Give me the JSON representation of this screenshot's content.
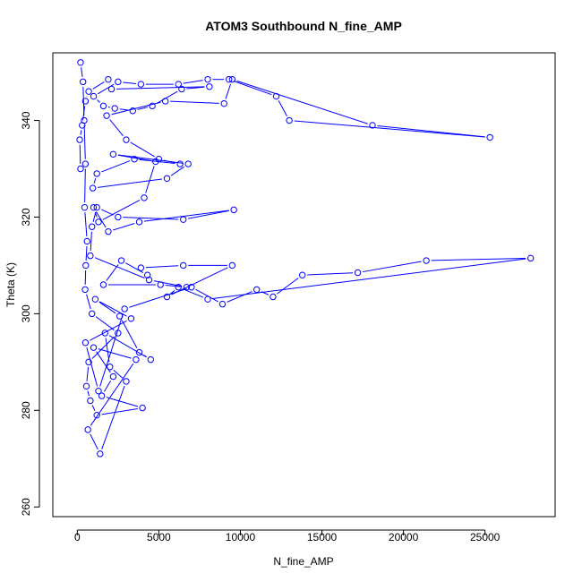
{
  "chart_data": {
    "type": "scatter",
    "mode": "lines+markers",
    "title": "ATOM3 Southbound N_fine_AMP",
    "xlabel": "N_fine_AMP",
    "ylabel": "Theta (K)",
    "xlim": [
      -1500,
      29300
    ],
    "ylim": [
      258,
      354
    ],
    "xticks": [
      0,
      5000,
      10000,
      15000,
      20000,
      25000
    ],
    "xtick_labels": [
      "0",
      "5000",
      "10000",
      "15000",
      "20000",
      "25000"
    ],
    "yticks": [
      260,
      280,
      300,
      320,
      340
    ],
    "ytick_labels": [
      "260",
      "280",
      "300",
      "320",
      "340"
    ],
    "grid": false,
    "color": "#0000ff",
    "marker": "open-circle",
    "series": [
      {
        "x": [
          200,
          350,
          420,
          500,
          450,
          600,
          520,
          480,
          900,
          2500,
          700,
          560,
          800,
          1200,
          4000,
          1500,
          2200,
          1000,
          3600,
          650,
          1400,
          3000,
          2000,
          1700,
          4500,
          3800,
          2600,
          1100,
          3300,
          500,
          1300,
          2900,
          7000,
          8900,
          11000,
          12000,
          13800,
          17200,
          21400,
          27800,
          8000,
          6200,
          5500,
          9500,
          6500,
          3900,
          4300,
          2700,
          1600,
          5100,
          6700,
          4400,
          800,
          900,
          1200,
          2500,
          6500,
          9600,
          3800,
          1900,
          1000,
          1300,
          4100,
          4800,
          2200,
          6800,
          5500,
          950,
          1200,
          3500,
          6300,
          5000,
          3000,
          1800,
          5400,
          9000,
          9500,
          18100,
          25300,
          13000,
          12200,
          9300,
          8000,
          6200,
          3900,
          2500,
          1000,
          1600,
          2300,
          3400,
          4600,
          6400,
          8100,
          2100,
          1900,
          700,
          500,
          300,
          150,
          200
        ],
        "y": [
          352,
          348,
          340,
          331,
          322,
          315,
          310,
          305,
          300,
          296,
          290,
          285,
          282,
          279,
          280.5,
          283,
          287,
          293,
          290.5,
          276,
          271,
          286,
          289,
          296,
          290.5,
          292,
          299.5,
          303,
          299,
          294,
          284,
          301,
          305.5,
          302,
          305,
          303.5,
          308,
          308.5,
          311,
          311.5,
          303,
          305.5,
          303.5,
          310,
          310,
          309.5,
          308,
          311,
          306,
          306,
          305.5,
          307,
          312,
          318,
          322,
          320,
          319.5,
          321.5,
          319,
          317,
          322,
          319,
          324,
          331.5,
          333,
          331,
          328,
          326,
          329,
          332,
          331,
          332,
          336,
          341,
          344,
          343.5,
          348.5,
          339,
          336.5,
          340,
          345,
          348.5,
          348.5,
          347.5,
          347.5,
          348,
          345,
          343,
          342.5,
          342,
          343,
          346.5,
          347,
          346.5,
          348.5,
          346,
          344,
          339,
          336,
          330
        ]
      }
    ]
  }
}
